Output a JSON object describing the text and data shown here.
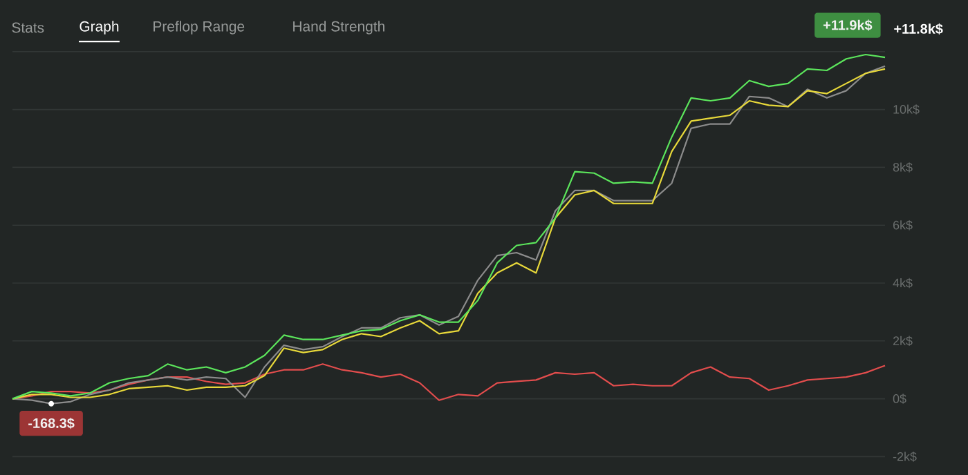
{
  "chart_data": {
    "type": "line",
    "categories": [
      null,
      null,
      null,
      null,
      null,
      null,
      null,
      null,
      null,
      null,
      null,
      null,
      null,
      null,
      null,
      null,
      null,
      null,
      null,
      null,
      null,
      null,
      null,
      null,
      null,
      null,
      null,
      null,
      null,
      null,
      null,
      null,
      null,
      null,
      null,
      null,
      null,
      null,
      null,
      null,
      null,
      null,
      null,
      null,
      null,
      null
    ],
    "series": [
      {
        "color": "#5ce65c",
        "values": [
          0,
          250,
          200,
          100,
          200,
          550,
          700,
          800,
          1200,
          1000,
          1100,
          900,
          1100,
          1500,
          2200,
          2050,
          2050,
          2200,
          2350,
          2400,
          2700,
          2900,
          2650,
          2650,
          3400,
          4700,
          5300,
          5400,
          6250,
          7850,
          7800,
          7450,
          7500,
          7450,
          9050,
          10400,
          10300,
          10400,
          11000,
          10800,
          10900,
          11400,
          11350,
          11750,
          11900,
          11800
        ]
      },
      {
        "color": "#e8d93a",
        "values": [
          0,
          150,
          150,
          50,
          50,
          150,
          350,
          400,
          450,
          300,
          400,
          400,
          450,
          800,
          1750,
          1600,
          1700,
          2050,
          2250,
          2150,
          2450,
          2700,
          2250,
          2350,
          3650,
          4350,
          4700,
          4350,
          6250,
          7050,
          7200,
          6750,
          6750,
          6750,
          8550,
          9600,
          9700,
          9800,
          10300,
          10150,
          10100,
          10650,
          10550,
          10900,
          11250,
          11400
        ]
      },
      {
        "color": "#8c8c8c",
        "values": [
          0,
          -50,
          -168.3,
          -100,
          150,
          300,
          550,
          650,
          750,
          650,
          750,
          700,
          50,
          1100,
          1850,
          1700,
          1800,
          2150,
          2450,
          2450,
          2800,
          2900,
          2550,
          2850,
          4100,
          4950,
          5050,
          4800,
          6500,
          7200,
          7200,
          6850,
          6850,
          6850,
          7450,
          9350,
          9500,
          9500,
          10450,
          10400,
          10100,
          10700,
          10400,
          10650,
          11250,
          11500
        ]
      },
      {
        "color": "#e34d4d",
        "values": [
          0,
          100,
          250,
          250,
          200,
          300,
          500,
          650,
          750,
          750,
          600,
          500,
          550,
          850,
          1000,
          1000,
          1200,
          1000,
          900,
          750,
          850,
          550,
          -50,
          150,
          100,
          550,
          600,
          650,
          900,
          850,
          900,
          450,
          500,
          450,
          450,
          900,
          1100,
          750,
          700,
          300,
          450,
          650,
          700,
          750,
          900,
          1150
        ]
      }
    ],
    "ylim": [
      -2000,
      12000
    ],
    "yticks": [
      {
        "value": -2000,
        "label": "-2k$"
      },
      {
        "value": 0,
        "label": "0$"
      },
      {
        "value": 2000,
        "label": "2k$"
      },
      {
        "value": 4000,
        "label": "4k$"
      },
      {
        "value": 6000,
        "label": "6k$"
      },
      {
        "value": 8000,
        "label": "8k$"
      },
      {
        "value": 10000,
        "label": "10k$"
      },
      {
        "value": 12000,
        "label": null
      }
    ],
    "grid": "y",
    "tick_labels": "y",
    "marker": "none",
    "line_style": "solid",
    "annotations": [
      "Stats",
      "Graph",
      "Preflop Range",
      "Hand Strength",
      "+11.9k$",
      "+11.8k$",
      {
        "text": "-168.3$",
        "y": -168.3
      }
    ]
  }
}
